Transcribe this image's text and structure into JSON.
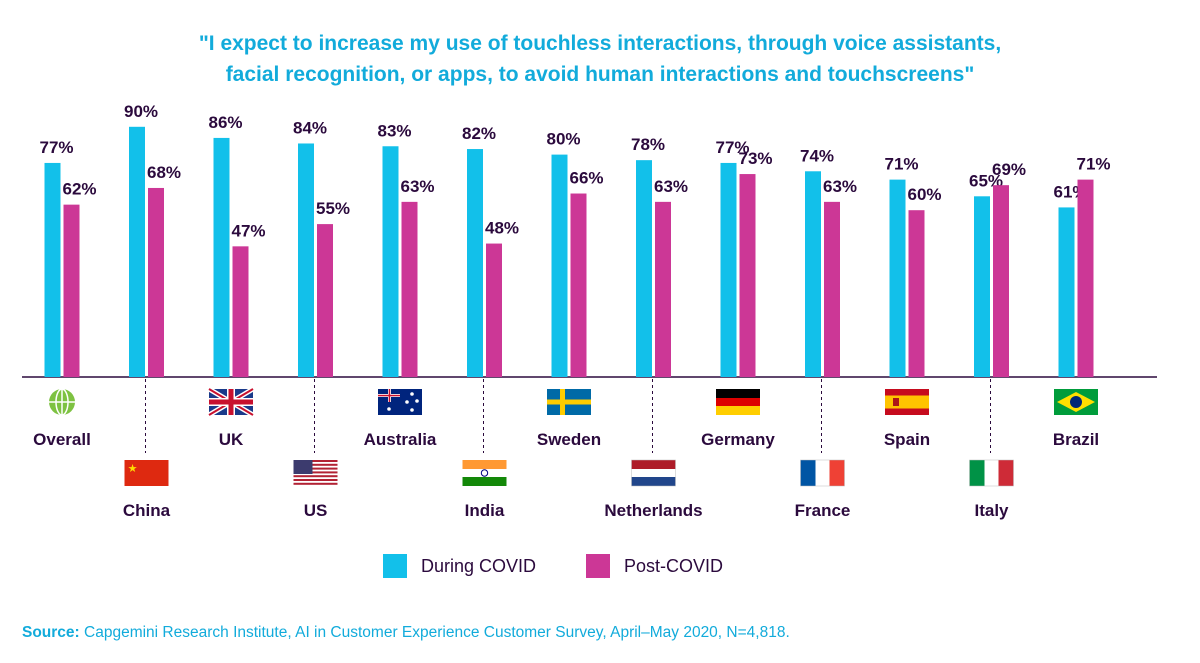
{
  "title": {
    "line1": "\"I expect to increase my use of touchless interactions, through voice assistants,",
    "line2": "facial recognition, or apps, to avoid human interactions and touchscreens\""
  },
  "colors": {
    "during": "#12c0ea",
    "post": "#cc3796",
    "text": "#2b0a3d",
    "accent": "#12abdb"
  },
  "chart_data": {
    "type": "bar",
    "categories": [
      "Overall",
      "China",
      "UK",
      "US",
      "Australia",
      "India",
      "Sweden",
      "Netherlands",
      "Germany",
      "France",
      "Spain",
      "Italy",
      "Brazil"
    ],
    "category_icons": [
      "globe-icon",
      "china-flag-icon",
      "uk-flag-icon",
      "us-flag-icon",
      "australia-flag-icon",
      "india-flag-icon",
      "sweden-flag-icon",
      "netherlands-flag-icon",
      "germany-flag-icon",
      "france-flag-icon",
      "spain-flag-icon",
      "italy-flag-icon",
      "brazil-flag-icon"
    ],
    "series": [
      {
        "name": "During COVID",
        "values": [
          77,
          90,
          86,
          84,
          83,
          82,
          80,
          78,
          77,
          74,
          71,
          65,
          61
        ],
        "labels": [
          "77%",
          "90%",
          "86%",
          "84%",
          "83%",
          "82%",
          "80%",
          "78%",
          "77%",
          "74%",
          "71%",
          "65%",
          "61%"
        ]
      },
      {
        "name": "Post-COVID",
        "values": [
          62,
          68,
          47,
          55,
          63,
          48,
          66,
          63,
          73,
          63,
          60,
          69,
          71
        ],
        "labels": [
          "62%",
          "68%",
          "47%",
          "55%",
          "63%",
          "48%",
          "66%",
          "63%",
          "73%",
          "63%",
          "60%",
          "69%",
          "71%"
        ]
      }
    ],
    "ylim": [
      0,
      100
    ]
  },
  "legend": {
    "during": "During COVID",
    "post": "Post-COVID"
  },
  "source": {
    "prefix": "Source:",
    "text": " Capgemini Research Institute, AI in Customer Experience Customer Survey, April–May 2020, N=4,818."
  }
}
